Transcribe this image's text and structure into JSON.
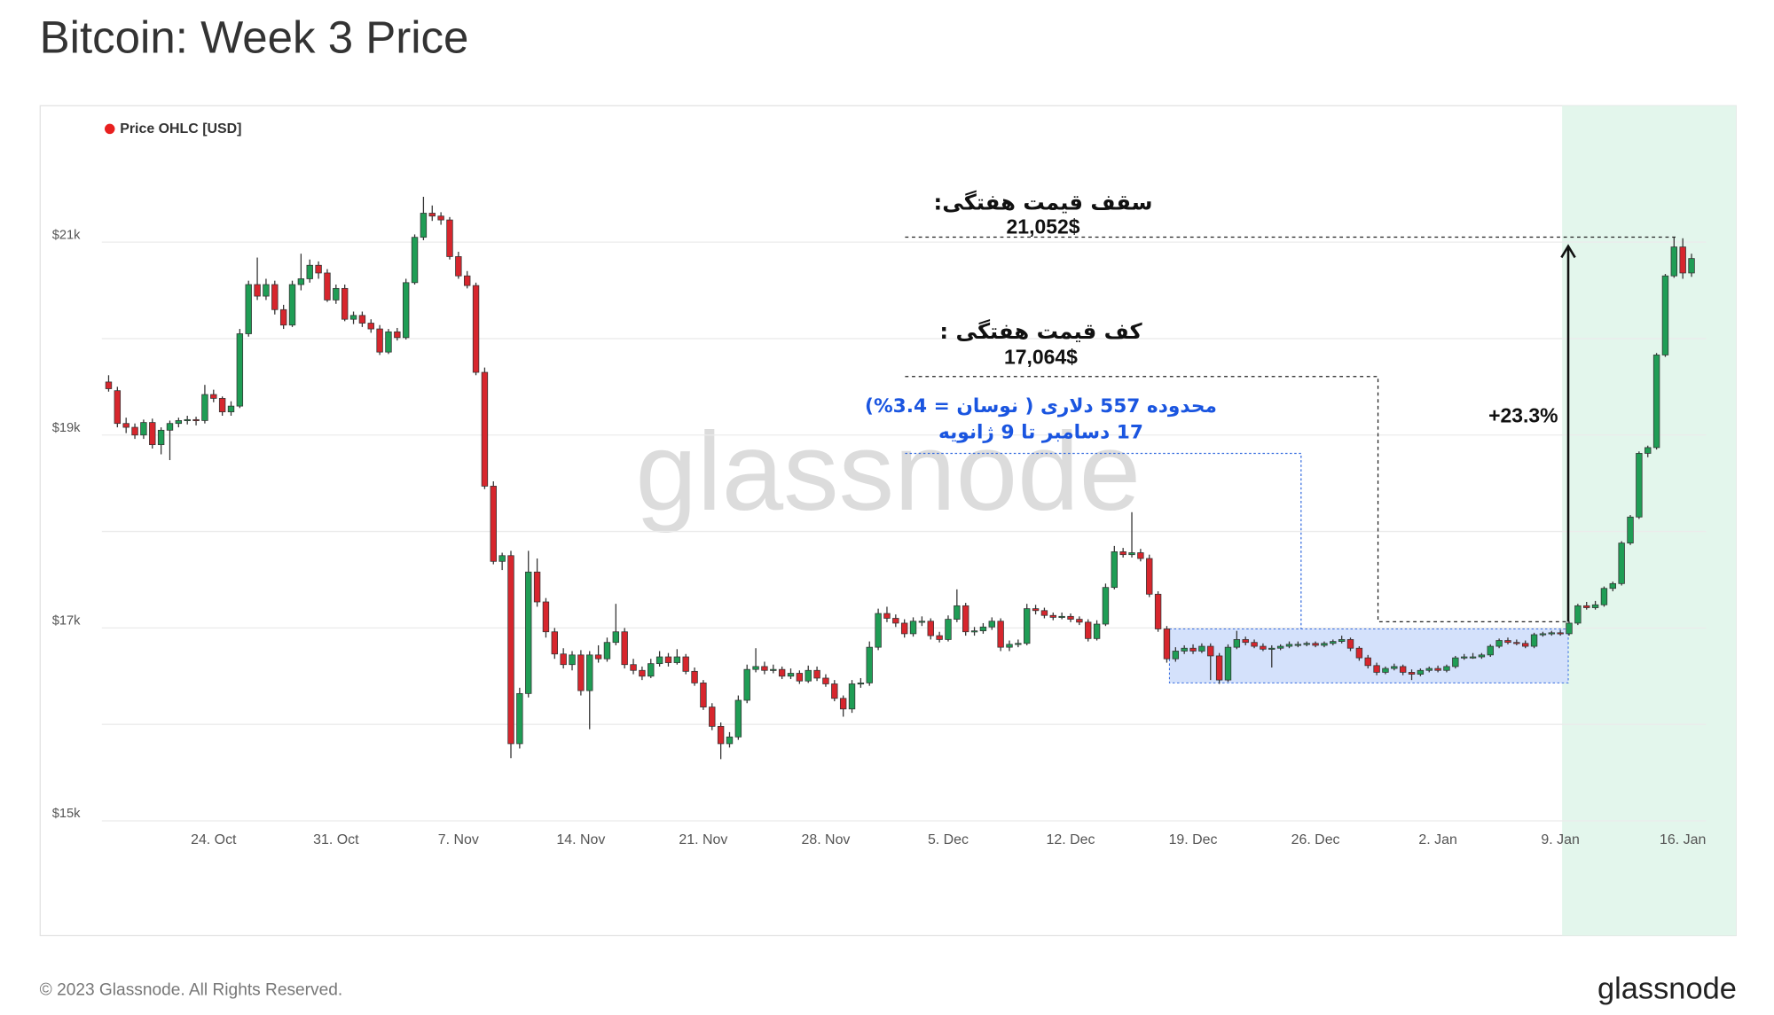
{
  "chart_data": {
    "type": "candlestick",
    "title": "Bitcoin: Week 3 Price",
    "legend": "Price OHLC [USD]",
    "legend_color": "#e8201f",
    "up_color": "#1f9d55",
    "down_color": "#d7262d",
    "ylim": [
      15000,
      22420
    ],
    "yticks": [
      {
        "value": 15000,
        "label": "$15k"
      },
      {
        "value": 17000,
        "label": "$17k"
      },
      {
        "value": 19000,
        "label": "$19k"
      },
      {
        "value": 21000,
        "label": "$21k"
      }
    ],
    "ygrid": [
      16000,
      18000,
      20000
    ],
    "grid": true,
    "categories": [
      null,
      null,
      null,
      null,
      null,
      null,
      null,
      null,
      null,
      null,
      null,
      null,
      "24. Oct",
      null,
      null,
      null,
      null,
      null,
      null,
      null,
      null,
      null,
      null,
      null,
      null,
      null,
      "31. Oct",
      null,
      null,
      null,
      null,
      null,
      null,
      null,
      null,
      null,
      null,
      null,
      null,
      null,
      "7. Nov",
      null,
      null,
      null,
      null,
      null,
      null,
      null,
      null,
      null,
      null,
      null,
      null,
      null,
      "14. Nov",
      null,
      null,
      null,
      null,
      null,
      null,
      null,
      null,
      null,
      null,
      null,
      null,
      null,
      "21. Nov",
      null,
      null,
      null,
      null,
      null,
      null,
      null,
      null,
      null,
      null,
      null,
      null,
      null,
      "28. Nov",
      null,
      null,
      null,
      null,
      null,
      null,
      null,
      null,
      null,
      null,
      null,
      null,
      null,
      "5. Dec",
      null,
      null,
      null,
      null,
      null,
      null,
      null,
      null,
      null,
      null,
      null,
      null,
      null,
      "12. Dec",
      null,
      null,
      null,
      null,
      null,
      null,
      null,
      null,
      null,
      null,
      null,
      null,
      null,
      "19. Dec",
      null,
      null,
      null,
      null,
      null,
      null,
      null,
      null,
      null,
      null,
      null,
      null,
      null,
      "26. Dec",
      null,
      null,
      null,
      null,
      null,
      null,
      null,
      null,
      null,
      null,
      null,
      null,
      null,
      "2. Jan",
      null,
      null,
      null,
      null,
      null,
      null,
      null,
      null,
      null,
      null,
      null,
      null,
      null,
      "9. Jan",
      null,
      null,
      null,
      null,
      null,
      null,
      null,
      null,
      null,
      null,
      null,
      null,
      null,
      "16. Jan",
      null
    ],
    "candles": [
      [
        19550,
        19620,
        19450,
        19480
      ],
      [
        19460,
        19500,
        19080,
        19120
      ],
      [
        19120,
        19180,
        19020,
        19080
      ],
      [
        19080,
        19120,
        18960,
        19000
      ],
      [
        19000,
        19160,
        18960,
        19130
      ],
      [
        19130,
        19170,
        18860,
        18900
      ],
      [
        18900,
        19080,
        18800,
        19050
      ],
      [
        19050,
        19150,
        18740,
        19120
      ],
      [
        19120,
        19180,
        19080,
        19150
      ],
      [
        19150,
        19200,
        19110,
        19160
      ],
      [
        19160,
        19190,
        19100,
        19150
      ],
      [
        19150,
        19520,
        19120,
        19420
      ],
      [
        19420,
        19470,
        19340,
        19380
      ],
      [
        19380,
        19400,
        19200,
        19240
      ],
      [
        19240,
        19350,
        19200,
        19300
      ],
      [
        19300,
        20100,
        19280,
        20050
      ],
      [
        20050,
        20600,
        20020,
        20560
      ],
      [
        20560,
        20840,
        20400,
        20440
      ],
      [
        20440,
        20620,
        20400,
        20560
      ],
      [
        20560,
        20600,
        20250,
        20300
      ],
      [
        20300,
        20350,
        20100,
        20140
      ],
      [
        20140,
        20600,
        20120,
        20560
      ],
      [
        20560,
        20880,
        20500,
        20620
      ],
      [
        20620,
        20820,
        20580,
        20760
      ],
      [
        20760,
        20800,
        20620,
        20680
      ],
      [
        20680,
        20720,
        20380,
        20400
      ],
      [
        20400,
        20560,
        20360,
        20520
      ],
      [
        20520,
        20560,
        20180,
        20200
      ],
      [
        20200,
        20280,
        20150,
        20240
      ],
      [
        20240,
        20280,
        20120,
        20160
      ],
      [
        20160,
        20200,
        20060,
        20100
      ],
      [
        20100,
        20140,
        19830,
        19860
      ],
      [
        19860,
        20100,
        19840,
        20070
      ],
      [
        20070,
        20110,
        19980,
        20010
      ],
      [
        20010,
        20620,
        19990,
        20580
      ],
      [
        20580,
        21080,
        20560,
        21050
      ],
      [
        21050,
        21470,
        21020,
        21300
      ],
      [
        21300,
        21380,
        21220,
        21270
      ],
      [
        21270,
        21310,
        21180,
        21230
      ],
      [
        21230,
        21260,
        20820,
        20850
      ],
      [
        20850,
        20900,
        20620,
        20650
      ],
      [
        20650,
        20700,
        20520,
        20550
      ],
      [
        20550,
        20580,
        19620,
        19650
      ],
      [
        19650,
        19700,
        18440,
        18470
      ],
      [
        18470,
        18520,
        17660,
        17690
      ],
      [
        17690,
        17780,
        17600,
        17750
      ],
      [
        17750,
        17800,
        15650,
        15800
      ],
      [
        15800,
        16380,
        15750,
        16320
      ],
      [
        16320,
        17800,
        16280,
        17580
      ],
      [
        17580,
        17720,
        17220,
        17270
      ],
      [
        17270,
        17310,
        16900,
        16960
      ],
      [
        16960,
        17000,
        16680,
        16730
      ],
      [
        16730,
        16790,
        16580,
        16620
      ],
      [
        16620,
        16760,
        16560,
        16720
      ],
      [
        16720,
        16770,
        16300,
        16350
      ],
      [
        16350,
        16760,
        15950,
        16720
      ],
      [
        16720,
        16820,
        16640,
        16680
      ],
      [
        16680,
        16900,
        16650,
        16850
      ],
      [
        16850,
        17250,
        16820,
        16960
      ],
      [
        16960,
        17000,
        16580,
        16620
      ],
      [
        16620,
        16680,
        16520,
        16560
      ],
      [
        16560,
        16600,
        16460,
        16500
      ],
      [
        16500,
        16680,
        16480,
        16630
      ],
      [
        16630,
        16760,
        16600,
        16700
      ],
      [
        16700,
        16740,
        16600,
        16640
      ],
      [
        16640,
        16780,
        16620,
        16700
      ],
      [
        16700,
        16730,
        16520,
        16550
      ],
      [
        16550,
        16590,
        16400,
        16430
      ],
      [
        16430,
        16460,
        16150,
        16180
      ],
      [
        16180,
        16220,
        15940,
        15980
      ],
      [
        15980,
        16020,
        15640,
        15800
      ],
      [
        15800,
        15920,
        15760,
        15870
      ],
      [
        15870,
        16300,
        15840,
        16250
      ],
      [
        16250,
        16620,
        16220,
        16570
      ],
      [
        16570,
        16790,
        16540,
        16600
      ],
      [
        16600,
        16650,
        16520,
        16560
      ],
      [
        16560,
        16620,
        16530,
        16570
      ],
      [
        16570,
        16600,
        16470,
        16500
      ],
      [
        16500,
        16580,
        16470,
        16530
      ],
      [
        16530,
        16560,
        16420,
        16450
      ],
      [
        16450,
        16610,
        16430,
        16560
      ],
      [
        16560,
        16600,
        16450,
        16480
      ],
      [
        16480,
        16520,
        16390,
        16420
      ],
      [
        16420,
        16460,
        16240,
        16270
      ],
      [
        16270,
        16300,
        16080,
        16160
      ],
      [
        16160,
        16460,
        16120,
        16420
      ],
      [
        16420,
        16480,
        16380,
        16430
      ],
      [
        16430,
        16860,
        16400,
        16800
      ],
      [
        16800,
        17200,
        16770,
        17150
      ],
      [
        17150,
        17220,
        17060,
        17100
      ],
      [
        17100,
        17140,
        17010,
        17050
      ],
      [
        17050,
        17090,
        16900,
        16940
      ],
      [
        16940,
        17110,
        16910,
        17070
      ],
      [
        17070,
        17120,
        17020,
        17070
      ],
      [
        17070,
        17100,
        16880,
        16920
      ],
      [
        16920,
        16960,
        16850,
        16880
      ],
      [
        16880,
        17130,
        16860,
        17090
      ],
      [
        17090,
        17400,
        17060,
        17230
      ],
      [
        17230,
        17260,
        16920,
        16960
      ],
      [
        16960,
        17010,
        16920,
        16970
      ],
      [
        16970,
        17050,
        16940,
        17010
      ],
      [
        17010,
        17110,
        16980,
        17070
      ],
      [
        17070,
        17100,
        16760,
        16800
      ],
      [
        16800,
        16870,
        16760,
        16830
      ],
      [
        16830,
        16880,
        16800,
        16840
      ],
      [
        16840,
        17250,
        16820,
        17200
      ],
      [
        17200,
        17240,
        17140,
        17180
      ],
      [
        17180,
        17210,
        17100,
        17130
      ],
      [
        17130,
        17160,
        17080,
        17110
      ],
      [
        17110,
        17160,
        17090,
        17120
      ],
      [
        17120,
        17150,
        17060,
        17090
      ],
      [
        17090,
        17120,
        17030,
        17060
      ],
      [
        17060,
        17090,
        16860,
        16890
      ],
      [
        16890,
        17080,
        16870,
        17040
      ],
      [
        17040,
        17460,
        17020,
        17420
      ],
      [
        17420,
        17850,
        17400,
        17790
      ],
      [
        17790,
        17830,
        17730,
        17760
      ],
      [
        17760,
        18200,
        17730,
        17780
      ],
      [
        17780,
        17820,
        17690,
        17720
      ],
      [
        17720,
        17760,
        17320,
        17350
      ],
      [
        17350,
        17380,
        16960,
        16990
      ],
      [
        16990,
        17020,
        16640,
        16680
      ],
      [
        16680,
        16800,
        16650,
        16760
      ],
      [
        16760,
        16820,
        16730,
        16790
      ],
      [
        16790,
        16830,
        16730,
        16760
      ],
      [
        16760,
        16840,
        16740,
        16810
      ],
      [
        16810,
        16840,
        16460,
        16710
      ],
      [
        16710,
        16740,
        16420,
        16460
      ],
      [
        16460,
        16830,
        16440,
        16800
      ],
      [
        16800,
        16970,
        16780,
        16880
      ],
      [
        16880,
        16910,
        16820,
        16850
      ],
      [
        16850,
        16880,
        16790,
        16810
      ],
      [
        16810,
        16840,
        16760,
        16780
      ],
      [
        16780,
        16820,
        16590,
        16790
      ],
      [
        16790,
        16830,
        16770,
        16810
      ],
      [
        16810,
        16860,
        16790,
        16830
      ],
      [
        16830,
        16860,
        16800,
        16830
      ],
      [
        16830,
        16860,
        16810,
        16840
      ],
      [
        16840,
        16860,
        16800,
        16820
      ],
      [
        16820,
        16860,
        16800,
        16840
      ],
      [
        16840,
        16880,
        16820,
        16860
      ],
      [
        16860,
        16920,
        16840,
        16880
      ],
      [
        16880,
        16900,
        16760,
        16790
      ],
      [
        16790,
        16810,
        16660,
        16690
      ],
      [
        16690,
        16720,
        16580,
        16610
      ],
      [
        16610,
        16640,
        16510,
        16540
      ],
      [
        16540,
        16600,
        16520,
        16580
      ],
      [
        16580,
        16630,
        16560,
        16600
      ],
      [
        16600,
        16620,
        16510,
        16540
      ],
      [
        16540,
        16570,
        16460,
        16520
      ],
      [
        16520,
        16580,
        16500,
        16560
      ],
      [
        16560,
        16600,
        16540,
        16580
      ],
      [
        16580,
        16610,
        16540,
        16560
      ],
      [
        16560,
        16620,
        16540,
        16600
      ],
      [
        16600,
        16710,
        16580,
        16690
      ],
      [
        16690,
        16730,
        16670,
        16700
      ],
      [
        16700,
        16740,
        16680,
        16700
      ],
      [
        16700,
        16740,
        16680,
        16720
      ],
      [
        16720,
        16830,
        16700,
        16810
      ],
      [
        16810,
        16890,
        16790,
        16870
      ],
      [
        16870,
        16900,
        16830,
        16850
      ],
      [
        16850,
        16880,
        16820,
        16840
      ],
      [
        16840,
        16870,
        16790,
        16810
      ],
      [
        16810,
        16950,
        16790,
        16930
      ],
      [
        16930,
        16960,
        16910,
        16940
      ],
      [
        16940,
        16970,
        16920,
        16950
      ],
      [
        16950,
        16980,
        16920,
        16940
      ],
      [
        16940,
        17070,
        16920,
        17050
      ],
      [
        17050,
        17250,
        17030,
        17230
      ],
      [
        17230,
        17270,
        17190,
        17210
      ],
      [
        17210,
        17280,
        17190,
        17240
      ],
      [
        17240,
        17430,
        17220,
        17410
      ],
      [
        17410,
        17480,
        17380,
        17460
      ],
      [
        17460,
        17900,
        17440,
        17880
      ],
      [
        17880,
        18170,
        17860,
        18150
      ],
      [
        18150,
        18830,
        18130,
        18810
      ],
      [
        18810,
        18890,
        18770,
        18870
      ],
      [
        18870,
        19850,
        18850,
        19830
      ],
      [
        19830,
        20670,
        19810,
        20650
      ],
      [
        20650,
        21052,
        20630,
        20950
      ],
      [
        20950,
        21040,
        20620,
        20680
      ],
      [
        20680,
        20880,
        20640,
        20830
      ]
    ],
    "annotations": {
      "ceiling": {
        "label": "سقف قیمت هفتگی:",
        "value_label": "21,052$",
        "value": 21052
      },
      "floor": {
        "label": "کف قیمت هفتگی :",
        "value_label": "17,064$",
        "value": 17064
      },
      "range": {
        "lines": [
          "محدوده 557 دلاری ( نوسان = 3.4%)",
          "17 دسامبر تا 9 ژانویه"
        ],
        "low": 16430,
        "high": 16990
      },
      "gain": "+23.3%"
    }
  },
  "footer": {
    "copyright": "© 2023 Glassnode. All Rights Reserved.",
    "logo": "glassnode",
    "watermark": "glassnode"
  }
}
